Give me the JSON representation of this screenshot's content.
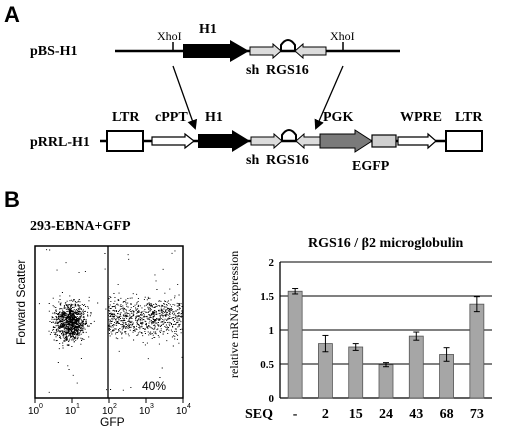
{
  "panel_a": {
    "label": "A",
    "row1_name": "pBS-H1",
    "row2_name": "pRRL-H1",
    "xhoi": "XhoI",
    "h1": "H1",
    "sh": "sh",
    "rgs16": "RGS16",
    "ltr": "LTR",
    "cppt": "cPPT",
    "pgk": "PGK",
    "wpre": "WPRE",
    "egfp": "EGFP"
  },
  "panel_b": {
    "label": "B",
    "flow_title": "293-EBNA+GFP",
    "flow_ylabel": "Forward Scatter",
    "flow_xlabel": "GFP",
    "flow_percent": "40%",
    "flow_xticks": [
      "10",
      "10",
      "10",
      "10",
      "10"
    ],
    "flow_xexp": [
      "0",
      "1",
      "2",
      "3",
      "4"
    ],
    "flow_gate_x": 100,
    "gfp_positive_fraction": 0.4
  },
  "chart_data": {
    "type": "bar",
    "title": "RGS16 / β2 microglobulin",
    "ylabel": "relative mRNA expression",
    "xlabel": "SEQ",
    "categories": [
      "-",
      "2",
      "15",
      "24",
      "43",
      "68",
      "73"
    ],
    "values": [
      1.57,
      0.8,
      0.75,
      0.49,
      0.91,
      0.64,
      1.38
    ],
    "errors": [
      0.04,
      0.12,
      0.05,
      0.03,
      0.06,
      0.1,
      0.11
    ],
    "yticks": [
      "0",
      "0.5",
      "1",
      "1.5",
      "2"
    ],
    "ylim": [
      0,
      2
    ],
    "grid": true,
    "bar_color": "#a6a6a6"
  }
}
